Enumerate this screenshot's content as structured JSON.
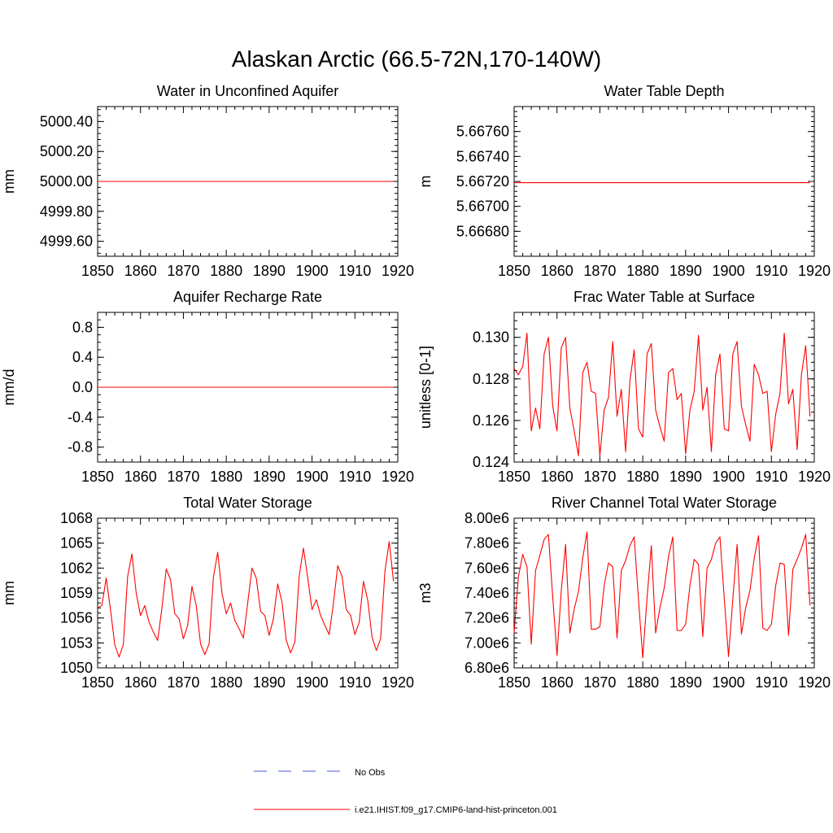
{
  "figure": {
    "title": "Alaskan Arctic (66.5-72N,170-140W)"
  },
  "legend": {
    "entries": [
      {
        "label": "No Obs",
        "color": "#4a5ad8",
        "style": "dashed"
      },
      {
        "label": "i.e21.IHIST.f09_g17.CMIP6-land-hist-princeton.001",
        "color": "#ff0000",
        "style": "solid"
      }
    ]
  },
  "chart_data": [
    {
      "type": "line",
      "title": "Water in Unconfined Aquifer",
      "ylabel": "mm",
      "xlim": [
        1850,
        1920
      ],
      "ylim": [
        4999.5,
        5000.5
      ],
      "xticks": [
        1850,
        1860,
        1870,
        1880,
        1890,
        1900,
        1910,
        1920
      ],
      "yticks": [
        4999.6,
        4999.8,
        5000.0,
        5000.2,
        5000.4
      ],
      "ytick_labels": [
        "4999.60",
        "4999.80",
        "5000.00",
        "5000.20",
        "5000.40"
      ],
      "y_minor_step": 0.04,
      "series": [
        {
          "x": [
            1850,
            1919
          ],
          "values": [
            5000.0,
            5000.0
          ],
          "color": "#ff0000"
        }
      ]
    },
    {
      "type": "line",
      "title": "Water Table Depth",
      "ylabel": "m",
      "xlim": [
        1850,
        1920
      ],
      "ylim": [
        5.6666,
        5.6678
      ],
      "xticks": [
        1850,
        1860,
        1870,
        1880,
        1890,
        1900,
        1910,
        1920
      ],
      "yticks": [
        5.6668,
        5.667,
        5.6672,
        5.6674,
        5.6676
      ],
      "ytick_labels": [
        "5.66680",
        "5.66700",
        "5.66720",
        "5.66740",
        "5.66760"
      ],
      "y_minor_step": 4e-05,
      "series": [
        {
          "x": [
            1850,
            1919
          ],
          "values": [
            5.66719,
            5.66719
          ],
          "color": "#ff0000"
        }
      ]
    },
    {
      "type": "line",
      "title": "Aquifer Recharge Rate",
      "ylabel": "mm/d",
      "xlim": [
        1850,
        1920
      ],
      "ylim": [
        -1.0,
        1.0
      ],
      "xticks": [
        1850,
        1860,
        1870,
        1880,
        1890,
        1900,
        1910,
        1920
      ],
      "yticks": [
        -0.8,
        -0.4,
        0.0,
        0.4,
        0.8
      ],
      "ytick_labels": [
        "-0.8",
        "-0.4",
        "0.0",
        "0.4",
        "0.8"
      ],
      "y_minor_step": 0.1,
      "series": [
        {
          "x": [
            1850,
            1919
          ],
          "values": [
            0.0,
            0.0
          ],
          "color": "#ff0000"
        }
      ]
    },
    {
      "type": "line",
      "title": "Frac Water Table at Surface",
      "ylabel": "unitless [0-1]",
      "xlim": [
        1850,
        1920
      ],
      "ylim": [
        0.124,
        0.1312
      ],
      "xticks": [
        1850,
        1860,
        1870,
        1880,
        1890,
        1900,
        1910,
        1920
      ],
      "yticks": [
        0.124,
        0.126,
        0.128,
        0.13
      ],
      "ytick_labels": [
        "0.124",
        "0.126",
        "0.128",
        "0.130"
      ],
      "y_minor_step": 0.0004,
      "series": [
        {
          "x": [
            1850,
            1851,
            1852,
            1853,
            1854,
            1855,
            1856,
            1857,
            1858,
            1859,
            1860,
            1861,
            1862,
            1863,
            1864,
            1865,
            1866,
            1867,
            1868,
            1869,
            1870,
            1871,
            1872,
            1873,
            1874,
            1875,
            1876,
            1877,
            1878,
            1879,
            1880,
            1881,
            1882,
            1883,
            1884,
            1885,
            1886,
            1887,
            1888,
            1889,
            1890,
            1891,
            1892,
            1893,
            1894,
            1895,
            1896,
            1897,
            1898,
            1899,
            1900,
            1901,
            1902,
            1903,
            1904,
            1905,
            1906,
            1907,
            1908,
            1909,
            1910,
            1911,
            1912,
            1913,
            1914,
            1915,
            1916,
            1917,
            1918,
            1919
          ],
          "values": [
            0.1285,
            0.1282,
            0.1286,
            0.1302,
            0.1255,
            0.1266,
            0.1256,
            0.1292,
            0.13,
            0.1267,
            0.1255,
            0.1295,
            0.13,
            0.1266,
            0.1255,
            0.1243,
            0.1283,
            0.1288,
            0.1274,
            0.1273,
            0.1243,
            0.1265,
            0.1271,
            0.1298,
            0.1262,
            0.1275,
            0.1245,
            0.1279,
            0.1294,
            0.1256,
            0.1252,
            0.1292,
            0.1297,
            0.1265,
            0.1257,
            0.125,
            0.1283,
            0.1285,
            0.127,
            0.1273,
            0.1244,
            0.1265,
            0.1274,
            0.1301,
            0.1265,
            0.1276,
            0.1245,
            0.1282,
            0.1292,
            0.1256,
            0.1255,
            0.1292,
            0.1298,
            0.1267,
            0.1258,
            0.125,
            0.1287,
            0.1282,
            0.1273,
            0.1274,
            0.1245,
            0.1263,
            0.1273,
            0.1302,
            0.1268,
            0.1275,
            0.1246,
            0.1282,
            0.1296,
            0.1262
          ],
          "color": "#ff0000"
        }
      ]
    },
    {
      "type": "line",
      "title": "Total Water Storage",
      "ylabel": "mm",
      "xlim": [
        1850,
        1920
      ],
      "ylim": [
        1050,
        1068
      ],
      "xticks": [
        1850,
        1860,
        1870,
        1880,
        1890,
        1900,
        1910,
        1920
      ],
      "yticks": [
        1050,
        1053,
        1056,
        1059,
        1062,
        1065,
        1068
      ],
      "ytick_labels": [
        "1050",
        "1053",
        "1056",
        "1059",
        "1062",
        "1065",
        "1068"
      ],
      "y_minor_step": 0.6,
      "series": [
        {
          "x": [
            1850,
            1851,
            1852,
            1853,
            1854,
            1855,
            1856,
            1857,
            1858,
            1859,
            1860,
            1861,
            1862,
            1863,
            1864,
            1865,
            1866,
            1867,
            1868,
            1869,
            1870,
            1871,
            1872,
            1873,
            1874,
            1875,
            1876,
            1877,
            1878,
            1879,
            1880,
            1881,
            1882,
            1883,
            1884,
            1885,
            1886,
            1887,
            1888,
            1889,
            1890,
            1891,
            1892,
            1893,
            1894,
            1895,
            1896,
            1897,
            1898,
            1899,
            1900,
            1901,
            1902,
            1903,
            1904,
            1905,
            1906,
            1907,
            1908,
            1909,
            1910,
            1911,
            1912,
            1913,
            1914,
            1915,
            1916,
            1917,
            1918,
            1919
          ],
          "values": [
            1057.2,
            1057.5,
            1060.8,
            1057.0,
            1052.8,
            1051.3,
            1052.8,
            1061.0,
            1063.7,
            1059.0,
            1056.3,
            1057.5,
            1055.5,
            1054.3,
            1053.3,
            1057.2,
            1061.9,
            1060.6,
            1056.5,
            1055.9,
            1053.5,
            1055.1,
            1059.8,
            1057.5,
            1052.9,
            1051.6,
            1052.9,
            1060.9,
            1063.9,
            1059.0,
            1056.5,
            1057.8,
            1055.7,
            1054.7,
            1053.6,
            1057.8,
            1062.0,
            1060.8,
            1056.8,
            1056.3,
            1053.9,
            1055.9,
            1060.1,
            1057.9,
            1053.3,
            1051.8,
            1053.1,
            1061.0,
            1064.4,
            1060.8,
            1057.0,
            1058.2,
            1056.3,
            1055.1,
            1054.0,
            1057.8,
            1062.3,
            1061.0,
            1057.0,
            1056.3,
            1054.0,
            1055.5,
            1060.4,
            1058.1,
            1053.7,
            1052.1,
            1053.5,
            1061.6,
            1065.2,
            1060.4
          ],
          "color": "#ff0000"
        }
      ]
    },
    {
      "type": "line",
      "title": "River Channel Total Water Storage",
      "ylabel": "m3",
      "xlim": [
        1850,
        1920
      ],
      "ylim": [
        6800000,
        8000000
      ],
      "xticks": [
        1850,
        1860,
        1870,
        1880,
        1890,
        1900,
        1910,
        1920
      ],
      "yticks": [
        6800000,
        7000000,
        7200000,
        7400000,
        7600000,
        7800000,
        8000000
      ],
      "ytick_labels": [
        "6.80e6",
        "7.00e6",
        "7.20e6",
        "7.40e6",
        "7.60e6",
        "7.80e6",
        "8.00e6"
      ],
      "y_minor_step": 40000,
      "series": [
        {
          "x": [
            1850,
            1851,
            1852,
            1853,
            1854,
            1855,
            1856,
            1857,
            1858,
            1859,
            1860,
            1861,
            1862,
            1863,
            1864,
            1865,
            1866,
            1867,
            1868,
            1869,
            1870,
            1871,
            1872,
            1873,
            1874,
            1875,
            1876,
            1877,
            1878,
            1879,
            1880,
            1881,
            1882,
            1883,
            1884,
            1885,
            1886,
            1887,
            1888,
            1889,
            1890,
            1891,
            1892,
            1893,
            1894,
            1895,
            1896,
            1897,
            1898,
            1899,
            1900,
            1901,
            1902,
            1903,
            1904,
            1905,
            1906,
            1907,
            1908,
            1909,
            1910,
            1911,
            1912,
            1913,
            1914,
            1915,
            1916,
            1917,
            1918,
            1919
          ],
          "values": [
            7080000,
            7530000,
            7710000,
            7610000,
            6990000,
            7580000,
            7700000,
            7830000,
            7870000,
            7370000,
            6900000,
            7420000,
            7790000,
            7080000,
            7270000,
            7410000,
            7680000,
            7890000,
            7110000,
            7110000,
            7130000,
            7460000,
            7640000,
            7610000,
            7040000,
            7580000,
            7660000,
            7780000,
            7850000,
            7350000,
            6880000,
            7360000,
            7780000,
            7080000,
            7280000,
            7440000,
            7690000,
            7850000,
            7100000,
            7100000,
            7150000,
            7460000,
            7670000,
            7630000,
            7050000,
            7600000,
            7670000,
            7800000,
            7850000,
            7360000,
            6890000,
            7350000,
            7790000,
            7070000,
            7280000,
            7420000,
            7680000,
            7860000,
            7120000,
            7100000,
            7150000,
            7460000,
            7640000,
            7630000,
            7060000,
            7590000,
            7670000,
            7760000,
            7870000,
            7300000
          ],
          "color": "#ff0000"
        }
      ]
    }
  ]
}
